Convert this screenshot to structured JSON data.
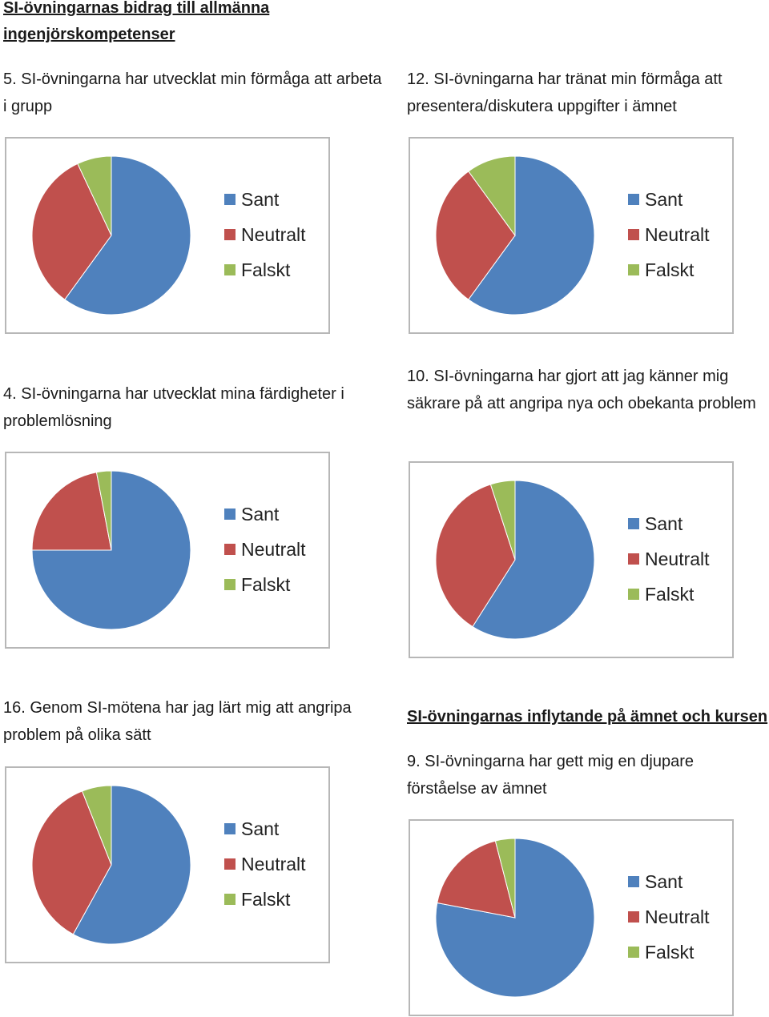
{
  "sections": [
    {
      "title": "SI-övningarnas bidrag till allmänna ingenjörskompetenser"
    },
    {
      "title": "SI-övningarnas inflytande på ämnet och kursen"
    }
  ],
  "colors": {
    "Sant": "#4f81bd",
    "Neutralt": "#c0504d",
    "Falskt": "#9bbb59"
  },
  "chart_data": [
    {
      "type": "pie",
      "title": "5. SI-övningarna har utvecklat min förmåga att arbeta i grupp",
      "categories": [
        "Sant",
        "Neutralt",
        "Falskt"
      ],
      "values": [
        60,
        33,
        7
      ],
      "legend": "right"
    },
    {
      "type": "pie",
      "title": "12. SI-övningarna har tränat min förmåga att presentera/diskutera uppgifter i ämnet",
      "categories": [
        "Sant",
        "Neutralt",
        "Falskt"
      ],
      "values": [
        60,
        30,
        10
      ],
      "legend": "right"
    },
    {
      "type": "pie",
      "title": "4. SI-övningarna har utvecklat mina färdigheter i problemlösning",
      "categories": [
        "Sant",
        "Neutralt",
        "Falskt"
      ],
      "values": [
        75,
        22,
        3
      ],
      "legend": "right"
    },
    {
      "type": "pie",
      "title": "10. SI-övningarna har gjort att jag känner mig säkrare på att angripa nya och obekanta problem",
      "categories": [
        "Sant",
        "Neutralt",
        "Falskt"
      ],
      "values": [
        59,
        36,
        5
      ],
      "legend": "right"
    },
    {
      "type": "pie",
      "title": "16. Genom SI-mötena har jag lärt mig att angripa problem på olika sätt",
      "categories": [
        "Sant",
        "Neutralt",
        "Falskt"
      ],
      "values": [
        58,
        36,
        6
      ],
      "legend": "right"
    },
    {
      "type": "pie",
      "title": "9. SI-övningarna har gett mig en djupare förståelse av ämnet",
      "categories": [
        "Sant",
        "Neutralt",
        "Falskt"
      ],
      "values": [
        78,
        18,
        4
      ],
      "legend": "right"
    }
  ]
}
